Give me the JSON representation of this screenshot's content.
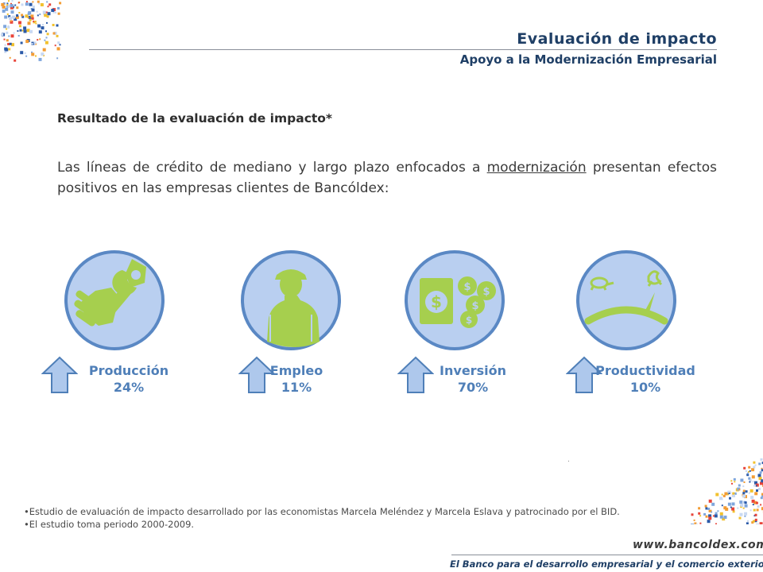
{
  "header": {
    "title": "Evaluación de impacto",
    "subtitle": "Apoyo a la Modernización Empresarial"
  },
  "section_heading": "Resultado de la evaluación de impacto*",
  "intro": {
    "before": "Las líneas de crédito de mediano y largo plazo enfocados a ",
    "underlined": "modernización",
    "after": " presentan efectos positivos en las empresas clientes de Bancóldex:"
  },
  "metrics": [
    {
      "label": "Producción",
      "value": "24%",
      "icon": "wrench-hand-icon"
    },
    {
      "label": "Empleo",
      "value": "11%",
      "icon": "worker-silhouette-icon"
    },
    {
      "label": "Inversión",
      "value": "70%",
      "icon": "money-coins-icon"
    },
    {
      "label": "Productividad",
      "value": "10%",
      "icon": "speed-gauge-icon"
    }
  ],
  "notes": [
    "•Estudio de evaluación de impacto desarrollado por las economistas Marcela Meléndez y Marcela Eslava  y patrocinado por el BID.",
    "•El estudio toma periodo  2000-2009."
  ],
  "footer": {
    "url": "www.bancoldex.com",
    "tagline": "El Banco para el desarrollo empresarial y el comercio exterior"
  },
  "colors": {
    "circle_fill": "#b9cff0",
    "circle_border": "#5a88c4",
    "icon_green": "#a6cf4e",
    "arrow_fill": "#aec8ec",
    "arrow_border": "#4f7fb8",
    "title_color": "#1f3f66"
  }
}
